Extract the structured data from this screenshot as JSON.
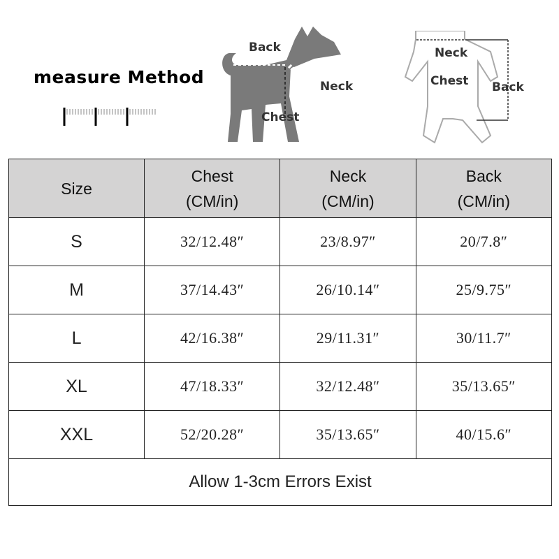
{
  "measure": {
    "title": "measure Method",
    "dog_labels": {
      "back": "Back",
      "neck": "Neck",
      "chest": "Chest"
    },
    "garment_labels": {
      "neck": "Neck",
      "chest": "Chest",
      "back": "Back"
    },
    "dog_color": "#7a7a7a"
  },
  "table": {
    "headers": [
      {
        "line1": "Size",
        "line2": ""
      },
      {
        "line1": "Chest",
        "line2": "(CM/in)"
      },
      {
        "line1": "Neck",
        "line2": "(CM/in)"
      },
      {
        "line1": "Back",
        "line2": "(CM/in)"
      }
    ],
    "rows": [
      {
        "size": "S",
        "chest": "32/12.48″",
        "neck": "23/8.97″",
        "back": "20/7.8″"
      },
      {
        "size": "M",
        "chest": "37/14.43″",
        "neck": "26/10.14″",
        "back": "25/9.75″"
      },
      {
        "size": "L",
        "chest": "42/16.38″",
        "neck": "29/11.31″",
        "back": "30/11.7″"
      },
      {
        "size": "XL",
        "chest": "47/18.33″",
        "neck": "32/12.48″",
        "back": "35/13.65″"
      },
      {
        "size": "XXL",
        "chest": "52/20.28″",
        "neck": "35/13.65″",
        "back": "40/15.6″"
      }
    ],
    "note": "Allow 1-3cm Errors Exist",
    "header_bg": "#d4d3d3"
  }
}
